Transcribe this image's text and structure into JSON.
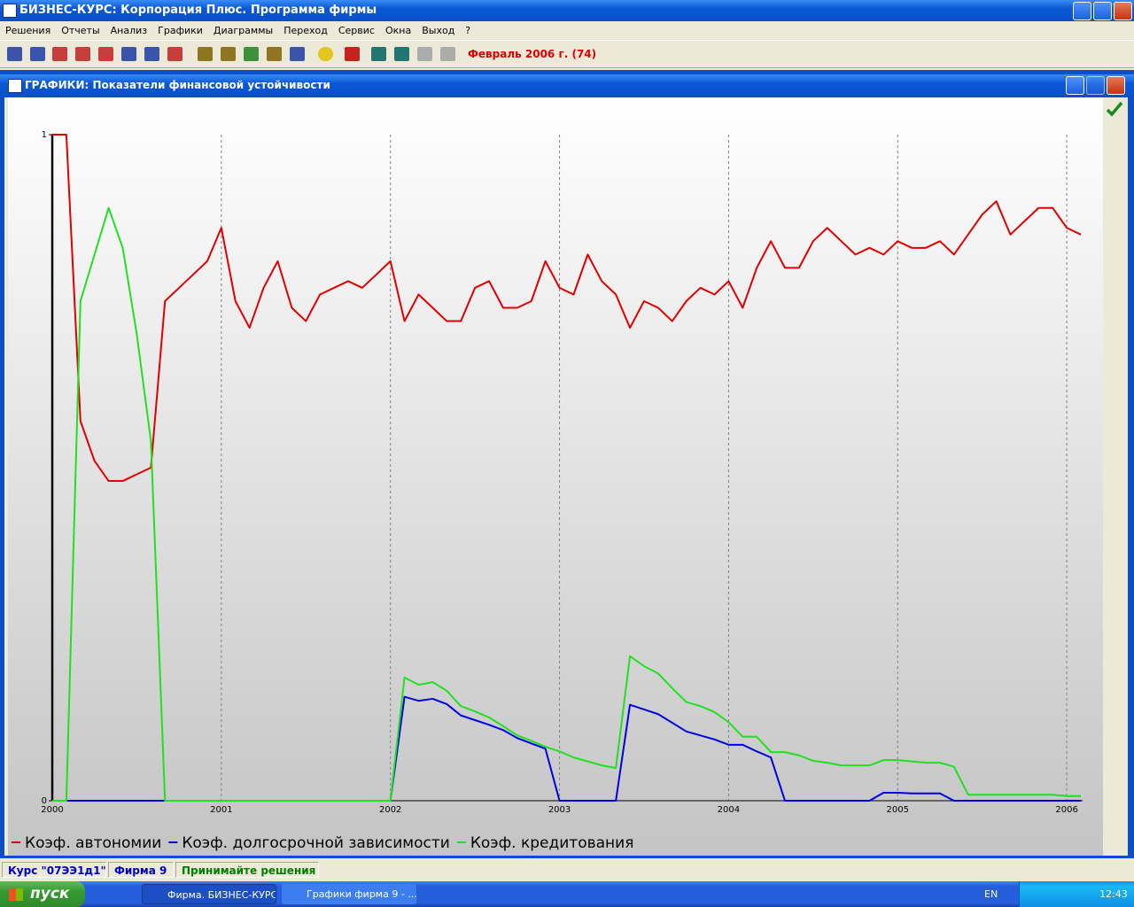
{
  "window": {
    "title": "БИЗНЕС-КУРС: Корпорация Плюс. Программа фирмы"
  },
  "menu": [
    "Решения",
    "Отчеты",
    "Анализ",
    "Графики",
    "Диаграммы",
    "Переход",
    "Сервис",
    "Окна",
    "Выход",
    "?"
  ],
  "toolbar": {
    "period": "Февраль 2006 г. (74)"
  },
  "child_window": {
    "title": "ГРАФИКИ: Показатели финансовой устойчивости"
  },
  "chart_data": {
    "type": "line",
    "categories": [
      "2000",
      null,
      null,
      null,
      null,
      null,
      null,
      null,
      null,
      null,
      null,
      null,
      "2001",
      null,
      null,
      null,
      null,
      null,
      null,
      null,
      null,
      null,
      null,
      null,
      "2002",
      null,
      null,
      null,
      null,
      null,
      null,
      null,
      null,
      null,
      null,
      null,
      "2003",
      null,
      null,
      null,
      null,
      null,
      null,
      null,
      null,
      null,
      null,
      null,
      "2004",
      null,
      null,
      null,
      null,
      null,
      null,
      null,
      null,
      null,
      null,
      null,
      "2005",
      null,
      null,
      null,
      null,
      null,
      null,
      null,
      null,
      null,
      null,
      null,
      "2006",
      null
    ],
    "series": [
      {
        "name": "Коэф. автономии",
        "color": "#e00000",
        "values": [
          1,
          1,
          0.57,
          0.51,
          0.48,
          0.48,
          0.49,
          0.5,
          0.75,
          0.77,
          0.79,
          0.81,
          0.86,
          0.75,
          0.71,
          0.77,
          0.81,
          0.74,
          0.72,
          0.76,
          0.77,
          0.78,
          0.77,
          0.79,
          0.81,
          0.72,
          0.76,
          0.74,
          0.72,
          0.72,
          0.77,
          0.78,
          0.74,
          0.74,
          0.75,
          0.81,
          0.77,
          0.76,
          0.82,
          0.78,
          0.76,
          0.71,
          0.75,
          0.74,
          0.72,
          0.75,
          0.77,
          0.76,
          0.78,
          0.74,
          0.8,
          0.84,
          0.8,
          0.8,
          0.84,
          0.86,
          0.84,
          0.82,
          0.83,
          0.82,
          0.84,
          0.83,
          0.83,
          0.84,
          0.82,
          0.85,
          0.88,
          0.9,
          0.85,
          0.87,
          0.89,
          0.89,
          0.86,
          0.85
        ]
      },
      {
        "name": "Коэф. долгосрочной зависимости",
        "color": "#0000e0",
        "values": [
          0,
          0,
          0,
          0,
          0,
          0,
          0,
          0,
          0,
          0,
          0,
          0,
          0,
          0,
          0,
          0,
          0,
          0,
          0,
          0,
          0,
          0,
          0,
          0,
          0,
          0.156,
          0.15,
          0.153,
          0.145,
          0.128,
          0.121,
          0.114,
          0.106,
          0.094,
          0.086,
          0.078,
          0,
          0,
          0,
          0,
          0,
          0.144,
          0.137,
          0.13,
          0.117,
          0.104,
          0.098,
          0.092,
          0.084,
          0.084,
          0.074,
          0.065,
          0,
          0,
          0,
          0,
          0,
          0,
          0,
          0.012,
          0.012,
          0.011,
          0.011,
          0.011,
          0,
          0,
          0,
          0,
          0,
          0,
          0,
          0,
          0,
          0
        ]
      },
      {
        "name": "Коэф. кредитования",
        "color": "#20e020",
        "values": [
          0,
          0,
          0.75,
          0.82,
          0.89,
          0.83,
          0.7,
          0.54,
          0,
          0,
          0,
          0,
          0,
          0,
          0,
          0,
          0,
          0,
          0,
          0,
          0,
          0,
          0,
          0,
          0,
          0.185,
          0.174,
          0.178,
          0.165,
          0.142,
          0.134,
          0.125,
          0.112,
          0.098,
          0.09,
          0.081,
          0.074,
          0.065,
          0.059,
          0.053,
          0.049,
          0.217,
          0.202,
          0.191,
          0.169,
          0.148,
          0.142,
          0.133,
          0.118,
          0.096,
          0.096,
          0.073,
          0.073,
          0.068,
          0.06,
          0.057,
          0.053,
          0.053,
          0.053,
          0.061,
          0.061,
          0.059,
          0.057,
          0.057,
          0.051,
          0.009,
          0.009,
          0.009,
          0.009,
          0.009,
          0.009,
          0.009,
          0.007,
          0.007
        ]
      }
    ],
    "ylim": [
      0,
      1
    ],
    "yticks": [
      0,
      1
    ],
    "x_grid": true,
    "legend": "bottom"
  },
  "status_bar": [
    "Курс \"07ЭЭ1д1\"",
    "Фирма 9",
    "Принимайте решения"
  ],
  "taskbar": {
    "start": "пуск",
    "tasks": [
      "Фирма. БИЗНЕС-КУРС",
      "Графики фирма 9 - ..."
    ],
    "language": "EN",
    "clock": "12:43"
  }
}
